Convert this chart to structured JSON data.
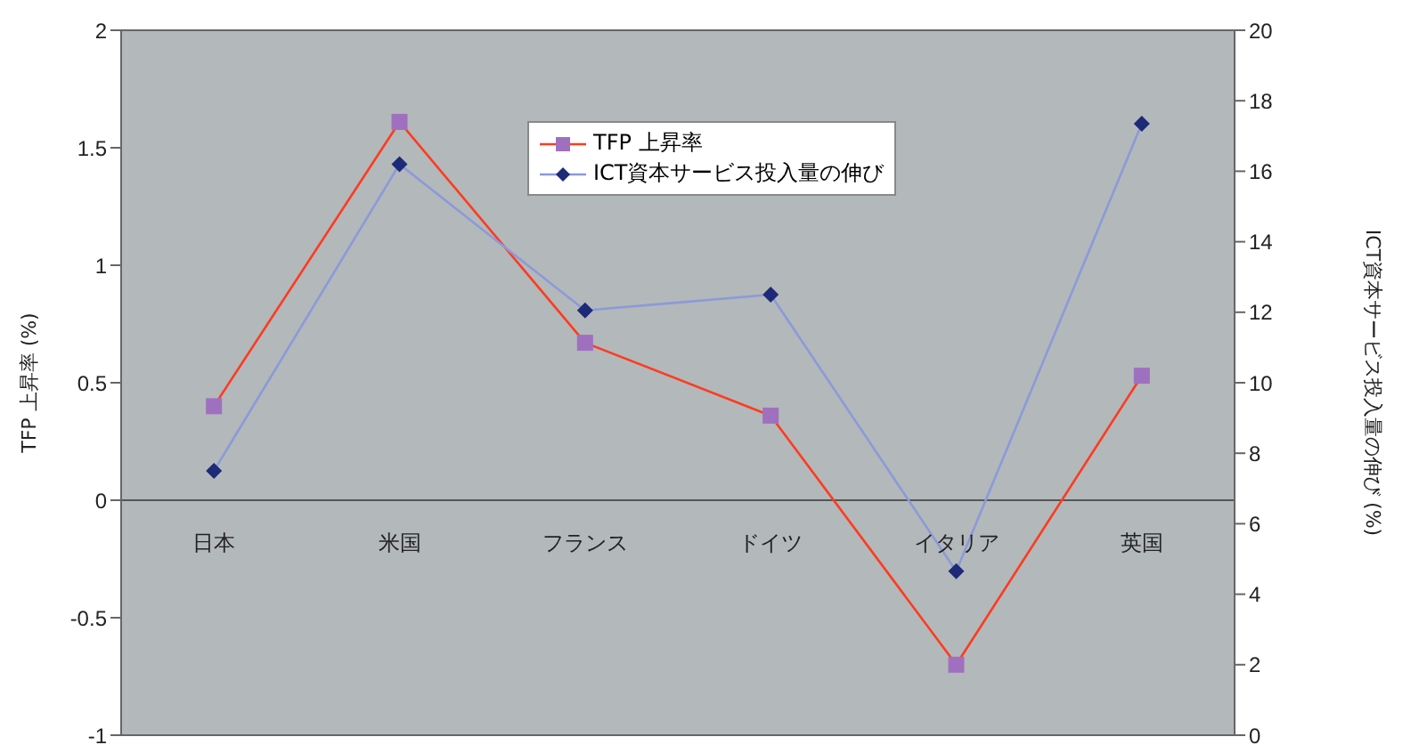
{
  "chart_data": {
    "type": "line",
    "categories": [
      "日本",
      "米国",
      "フランス",
      "ドイツ",
      "イタリア",
      "英国"
    ],
    "ylabel": "TFP 上昇率 (%)",
    "y2label": "ICT資本サービス投入量の伸び (%)",
    "ylim": [
      -1,
      2
    ],
    "yticks": [
      -1,
      -0.5,
      0,
      0.5,
      1,
      1.5,
      2
    ],
    "y2lim": [
      0,
      20
    ],
    "y2ticks": [
      0,
      2,
      4,
      6,
      8,
      10,
      12,
      14,
      16,
      18,
      20
    ],
    "legend": "top",
    "series": [
      {
        "name": "TFP 上昇率",
        "color": "#ff3b1f",
        "marker": "square",
        "colors": [
          "#a070c0",
          "#a070c0",
          "#a070c0",
          "#a070c0",
          "#a070c0",
          "#a070c0"
        ],
        "values": [
          0.4,
          1.61,
          0.67,
          0.36,
          -0.7,
          0.53
        ]
      },
      {
        "name": "ICT資本サービス投入量の伸び",
        "color": "#8c9ad8",
        "marker": "diamond",
        "axis": "y2",
        "colors": [
          "#1c2a78",
          "#1c2a78",
          "#1c2a78",
          "#1c2a78",
          "#1c2a78",
          "#1c2a78"
        ],
        "values": [
          7.5,
          16.2,
          12.05,
          12.5,
          4.65,
          17.35
        ]
      }
    ]
  }
}
